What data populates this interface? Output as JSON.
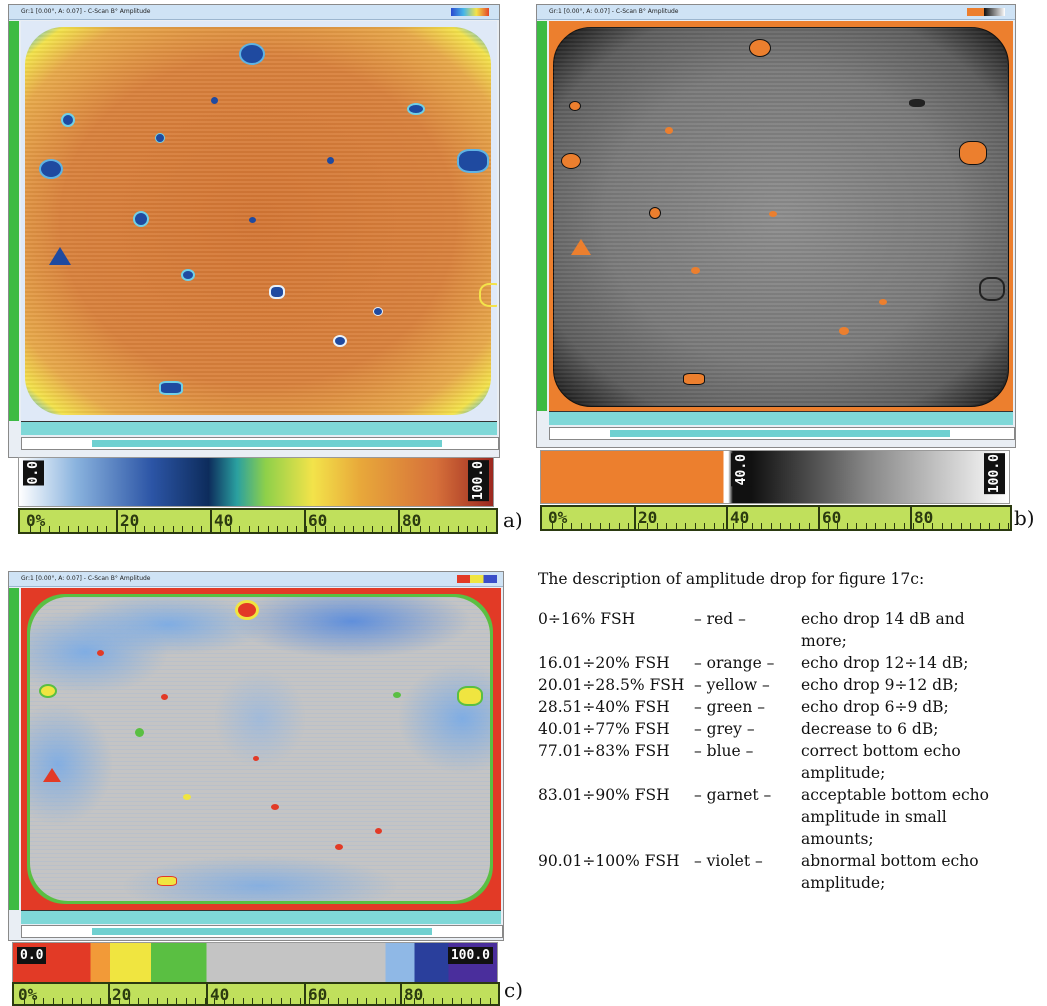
{
  "panels": [
    {
      "id": "a",
      "tag": "a)",
      "window_title": "Gr:1 [0.00°, A: 0.07] - C-Scan B° Amplitude",
      "legend_label": "0.0",
      "legend_label_right": "100.0",
      "scale_labels": [
        "0%",
        "20",
        "40",
        "60",
        "80"
      ],
      "colors": {
        "plate": "#d67a3c",
        "edge": "#f3e34a",
        "defect": "#1f4aa0"
      }
    },
    {
      "id": "b",
      "tag": "b)",
      "window_title": "Gr:1 [0.00°, A: 0.07] - C-Scan B° Amplitude",
      "legend_label": "40.0",
      "legend_label_right": "100.0",
      "scale_labels": [
        "0%",
        "20",
        "40",
        "60",
        "80"
      ],
      "colors": {
        "plate": "#8c8c8c",
        "background": "#ec7f2e",
        "defect": "#ec7f2e"
      }
    },
    {
      "id": "c",
      "tag": "c)",
      "window_title": "Gr:1 [0.00°, A: 0.07] - C-Scan B° Amplitude",
      "legend_label": "0.0",
      "legend_label_right": "100.0",
      "scale_labels": [
        "0%",
        "20",
        "40",
        "60",
        "80"
      ],
      "colors": {
        "plate": "#c4c4c4",
        "blue": "#8fb8e6",
        "red": "#e23a26",
        "yellow": "#f0e540",
        "green": "#5abf42"
      }
    }
  ],
  "description": {
    "heading": "The description of amplitude drop for figure 17c:",
    "rows": [
      {
        "range": "0÷16% FSH",
        "color": "– red –",
        "meaning": "echo drop 14 dB and more;"
      },
      {
        "range": "16.01÷20% FSH",
        "color": "– orange –",
        "meaning": "echo drop 12÷14 dB;"
      },
      {
        "range": "20.01÷28.5% FSH",
        "color": "– yellow –",
        "meaning": "echo drop 9÷12 dB;"
      },
      {
        "range": "28.51÷40% FSH",
        "color": "– green –",
        "meaning": "echo drop 6÷9 dB;"
      },
      {
        "range": "40.01÷77% FSH",
        "color": "– grey –",
        "meaning": "decrease to 6 dB;"
      },
      {
        "range": "77.01÷83% FSH",
        "color": "– blue –",
        "meaning": "correct bottom echo amplitude;"
      },
      {
        "range": "83.01÷90% FSH",
        "color": "– garnet –",
        "meaning": "acceptable bottom echo amplitude in small amounts;"
      },
      {
        "range": "90.01÷100% FSH",
        "color": "– violet –",
        "meaning": "abnormal bottom echo amplitude;"
      }
    ]
  }
}
